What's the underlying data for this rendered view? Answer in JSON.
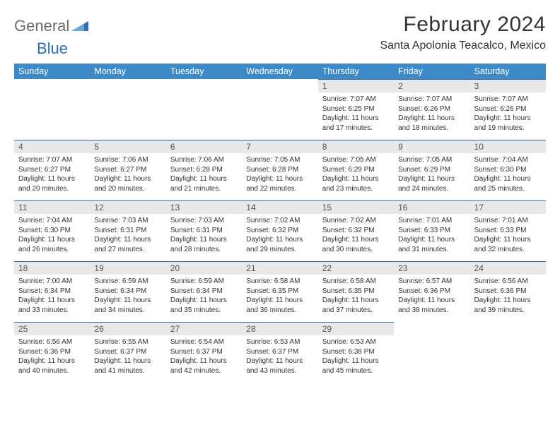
{
  "brand": {
    "word1": "General",
    "word2": "Blue"
  },
  "title": "February 2024",
  "location": "Santa Apolonia Teacalco, Mexico",
  "colors": {
    "header_bg": "#3d8ac7",
    "header_text": "#ffffff",
    "daynum_bg": "#e8e8e8",
    "daynum_border": "#2f6fb0",
    "text": "#333333",
    "logo_gray": "#6a6a6a",
    "logo_blue": "#2f6fb0"
  },
  "weekdays": [
    "Sunday",
    "Monday",
    "Tuesday",
    "Wednesday",
    "Thursday",
    "Friday",
    "Saturday"
  ],
  "layout": {
    "first_weekday_index": 4,
    "days_in_month": 29
  },
  "days": {
    "1": {
      "sunrise": "7:07 AM",
      "sunset": "6:25 PM",
      "daylight": "11 hours and 17 minutes."
    },
    "2": {
      "sunrise": "7:07 AM",
      "sunset": "6:26 PM",
      "daylight": "11 hours and 18 minutes."
    },
    "3": {
      "sunrise": "7:07 AM",
      "sunset": "6:26 PM",
      "daylight": "11 hours and 19 minutes."
    },
    "4": {
      "sunrise": "7:07 AM",
      "sunset": "6:27 PM",
      "daylight": "11 hours and 20 minutes."
    },
    "5": {
      "sunrise": "7:06 AM",
      "sunset": "6:27 PM",
      "daylight": "11 hours and 20 minutes."
    },
    "6": {
      "sunrise": "7:06 AM",
      "sunset": "6:28 PM",
      "daylight": "11 hours and 21 minutes."
    },
    "7": {
      "sunrise": "7:05 AM",
      "sunset": "6:28 PM",
      "daylight": "11 hours and 22 minutes."
    },
    "8": {
      "sunrise": "7:05 AM",
      "sunset": "6:29 PM",
      "daylight": "11 hours and 23 minutes."
    },
    "9": {
      "sunrise": "7:05 AM",
      "sunset": "6:29 PM",
      "daylight": "11 hours and 24 minutes."
    },
    "10": {
      "sunrise": "7:04 AM",
      "sunset": "6:30 PM",
      "daylight": "11 hours and 25 minutes."
    },
    "11": {
      "sunrise": "7:04 AM",
      "sunset": "6:30 PM",
      "daylight": "11 hours and 26 minutes."
    },
    "12": {
      "sunrise": "7:03 AM",
      "sunset": "6:31 PM",
      "daylight": "11 hours and 27 minutes."
    },
    "13": {
      "sunrise": "7:03 AM",
      "sunset": "6:31 PM",
      "daylight": "11 hours and 28 minutes."
    },
    "14": {
      "sunrise": "7:02 AM",
      "sunset": "6:32 PM",
      "daylight": "11 hours and 29 minutes."
    },
    "15": {
      "sunrise": "7:02 AM",
      "sunset": "6:32 PM",
      "daylight": "11 hours and 30 minutes."
    },
    "16": {
      "sunrise": "7:01 AM",
      "sunset": "6:33 PM",
      "daylight": "11 hours and 31 minutes."
    },
    "17": {
      "sunrise": "7:01 AM",
      "sunset": "6:33 PM",
      "daylight": "11 hours and 32 minutes."
    },
    "18": {
      "sunrise": "7:00 AM",
      "sunset": "6:34 PM",
      "daylight": "11 hours and 33 minutes."
    },
    "19": {
      "sunrise": "6:59 AM",
      "sunset": "6:34 PM",
      "daylight": "11 hours and 34 minutes."
    },
    "20": {
      "sunrise": "6:59 AM",
      "sunset": "6:34 PM",
      "daylight": "11 hours and 35 minutes."
    },
    "21": {
      "sunrise": "6:58 AM",
      "sunset": "6:35 PM",
      "daylight": "11 hours and 36 minutes."
    },
    "22": {
      "sunrise": "6:58 AM",
      "sunset": "6:35 PM",
      "daylight": "11 hours and 37 minutes."
    },
    "23": {
      "sunrise": "6:57 AM",
      "sunset": "6:36 PM",
      "daylight": "11 hours and 38 minutes."
    },
    "24": {
      "sunrise": "6:56 AM",
      "sunset": "6:36 PM",
      "daylight": "11 hours and 39 minutes."
    },
    "25": {
      "sunrise": "6:56 AM",
      "sunset": "6:36 PM",
      "daylight": "11 hours and 40 minutes."
    },
    "26": {
      "sunrise": "6:55 AM",
      "sunset": "6:37 PM",
      "daylight": "11 hours and 41 minutes."
    },
    "27": {
      "sunrise": "6:54 AM",
      "sunset": "6:37 PM",
      "daylight": "11 hours and 42 minutes."
    },
    "28": {
      "sunrise": "6:53 AM",
      "sunset": "6:37 PM",
      "daylight": "11 hours and 43 minutes."
    },
    "29": {
      "sunrise": "6:53 AM",
      "sunset": "6:38 PM",
      "daylight": "11 hours and 45 minutes."
    }
  },
  "labels": {
    "sunrise": "Sunrise:",
    "sunset": "Sunset:",
    "daylight": "Daylight:"
  }
}
